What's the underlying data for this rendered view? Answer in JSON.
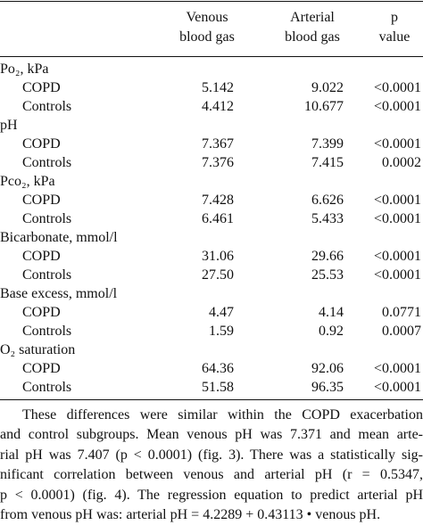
{
  "table": {
    "header": [
      "Venous\nblood gas",
      "Arterial\nblood gas",
      "p\nvalue"
    ],
    "sections": [
      {
        "title": "Po₂, kPa",
        "rows": [
          [
            "COPD",
            "5.142",
            "9.022",
            "<0.0001"
          ],
          [
            "Controls",
            "4.412",
            "10.677",
            "<0.0001"
          ]
        ]
      },
      {
        "title": "pH",
        "rows": [
          [
            "COPD",
            "7.367",
            "7.399",
            "<0.0001"
          ],
          [
            "Controls",
            "7.376",
            "7.415",
            "0.0002"
          ]
        ]
      },
      {
        "title": "Pco₂, kPa",
        "rows": [
          [
            "COPD",
            "7.428",
            "6.626",
            "<0.0001"
          ],
          [
            "Controls",
            "6.461",
            "5.433",
            "<0.0001"
          ]
        ]
      },
      {
        "title": "Bicarbonate, mmol/l",
        "rows": [
          [
            "COPD",
            "31.06",
            "29.66",
            "<0.0001"
          ],
          [
            "Controls",
            "27.50",
            "25.53",
            "<0.0001"
          ]
        ]
      },
      {
        "title": "Base excess, mmol/l",
        "rows": [
          [
            "COPD",
            "4.47",
            "4.14",
            "0.0771"
          ],
          [
            "Controls",
            "1.59",
            "0.92",
            "0.0007"
          ]
        ]
      },
      {
        "title": "O₂ saturation",
        "rows": [
          [
            "COPD",
            "64.36",
            "92.06",
            "<0.0001"
          ],
          [
            "Controls",
            "51.58",
            "96.35",
            "<0.0001"
          ]
        ]
      }
    ]
  },
  "paragraph": [
    "These differences were similar within the COPD exacerbation",
    "and control subgroups. Mean venous pH was 7.371 and mean arte-",
    "rial pH was 7.407 (p < 0.0001) (fig. 3). There was a statistically sig-",
    "nificant correlation between venous and arterial pH (r = 0.5347,",
    "p < 0.0001) (fig. 4). The regression equation to predict arterial pH",
    "from venous pH was: arterial pH = 4.2289 + 0.43113 • venous pH."
  ]
}
